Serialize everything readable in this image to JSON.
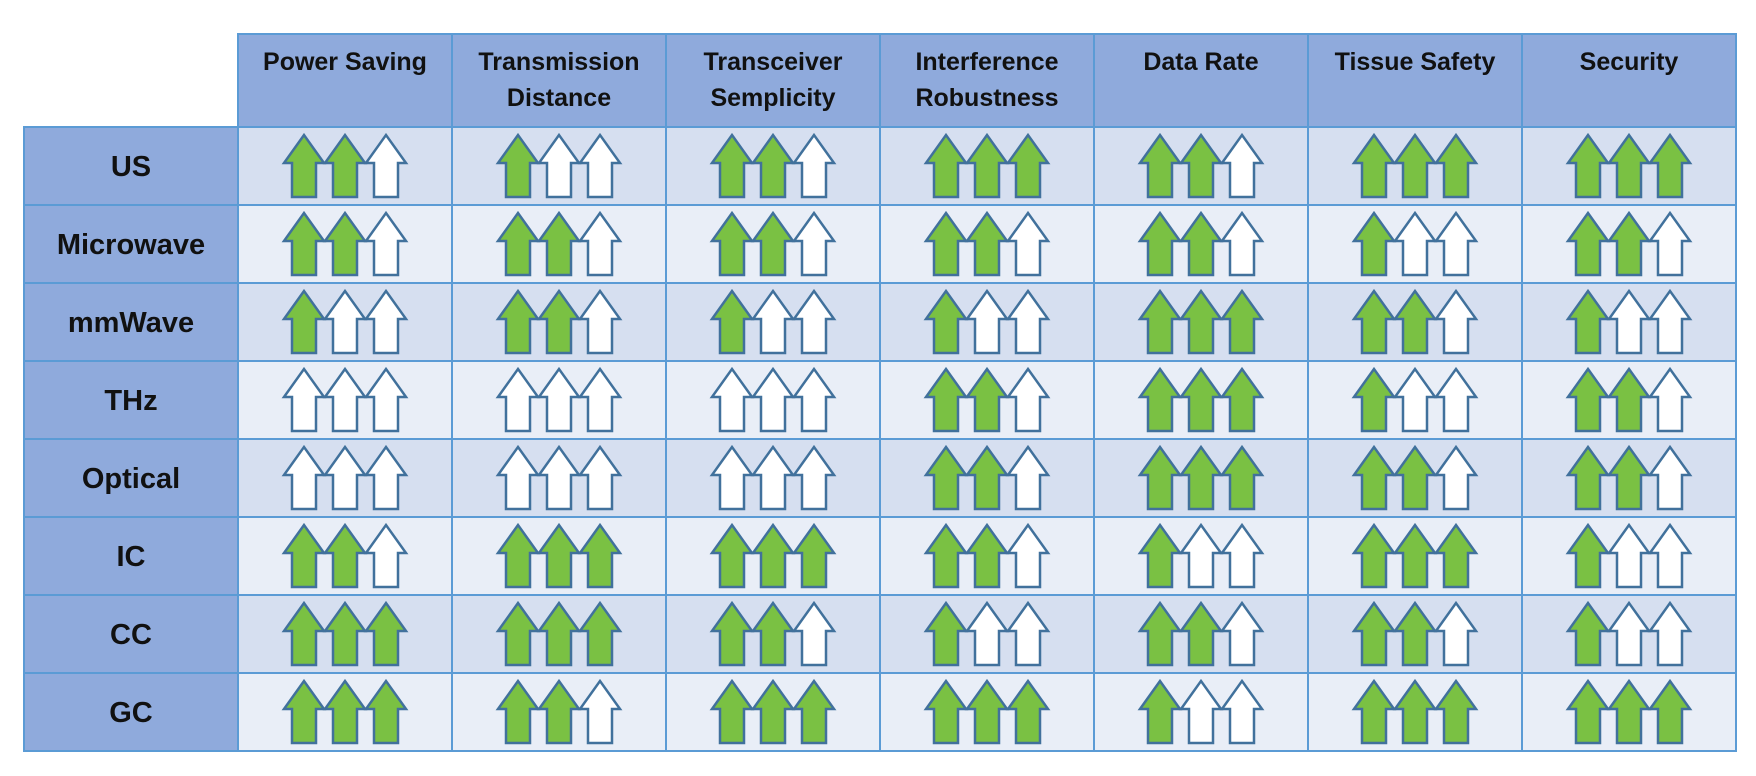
{
  "chart_data": {
    "type": "table",
    "legend": [
      {
        "label": "1",
        "meaning": "one green arrow"
      },
      {
        "label": "2",
        "meaning": "two green arrows"
      },
      {
        "label": "3",
        "meaning": "three green arrows"
      }
    ],
    "columns": [
      [
        "Power Saving"
      ],
      [
        "Transmission",
        "Distance"
      ],
      [
        "Transceiver",
        "Semplicity"
      ],
      [
        "Interference",
        "Robustness"
      ],
      [
        "Data Rate"
      ],
      [
        "Tissue Safety"
      ],
      [
        "Security"
      ]
    ],
    "rows": [
      {
        "label": "US",
        "scores": [
          2,
          1,
          2,
          3,
          2,
          3,
          3
        ]
      },
      {
        "label": "Microwave",
        "scores": [
          2,
          2,
          2,
          2,
          2,
          1,
          2
        ]
      },
      {
        "label": "mmWave",
        "scores": [
          1,
          2,
          1,
          1,
          3,
          2,
          1
        ]
      },
      {
        "label": "THz",
        "scores": [
          0,
          0,
          0,
          2,
          3,
          1,
          2
        ]
      },
      {
        "label": "Optical",
        "scores": [
          0,
          0,
          0,
          2,
          3,
          2,
          2
        ]
      },
      {
        "label": "IC",
        "scores": [
          2,
          3,
          3,
          2,
          1,
          3,
          1
        ]
      },
      {
        "label": "CC",
        "scores": [
          3,
          3,
          2,
          1,
          2,
          2,
          1
        ]
      },
      {
        "label": "GC",
        "scores": [
          3,
          2,
          3,
          3,
          1,
          3,
          3
        ]
      }
    ],
    "max_score": 3,
    "colors": {
      "header_fill": "#8faadc",
      "row_band_dark": "#d6dff0",
      "row_band_light": "#e9eef7",
      "grid_line": "#5b9bd5",
      "arrow_filled": "#7ac143",
      "arrow_empty": "#ffffff",
      "arrow_outline": "#41719c"
    }
  }
}
